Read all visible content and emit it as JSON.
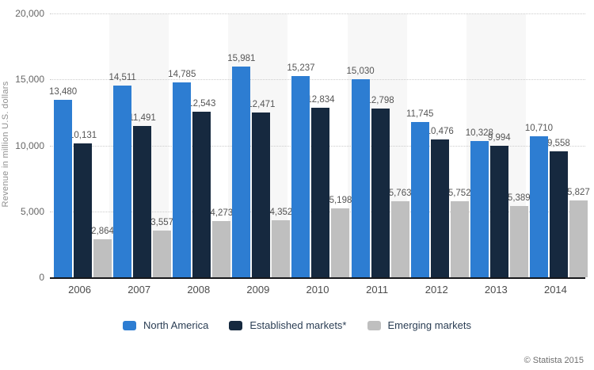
{
  "chart_data": {
    "type": "bar",
    "title": "",
    "xlabel": "",
    "ylabel": "Revenue in million U.S. dollars",
    "ylim": [
      0,
      20000
    ],
    "y_ticks": [
      {
        "value": 20000,
        "label": "20,000"
      },
      {
        "value": 15000,
        "label": "15,000"
      },
      {
        "value": 10000,
        "label": "10,000"
      },
      {
        "value": 5000,
        "label": "5,000"
      },
      {
        "value": 0,
        "label": "0"
      }
    ],
    "categories": [
      "2006",
      "2007",
      "2008",
      "2009",
      "2010",
      "2011",
      "2012",
      "2013",
      "2014"
    ],
    "series": [
      {
        "name": "North America",
        "color": "#2d7dd2",
        "values": [
          13480,
          14511,
          14785,
          15981,
          15237,
          15030,
          11745,
          10328,
          10710
        ]
      },
      {
        "name": "Established markets*",
        "color": "#16293f",
        "values": [
          10131,
          11491,
          12543,
          12471,
          12834,
          12798,
          10476,
          9994,
          9558
        ]
      },
      {
        "name": "Emerging markets",
        "color": "#bfbfbf",
        "values": [
          2864,
          3557,
          4273,
          4352,
          5198,
          5763,
          5752,
          5389,
          5827
        ]
      }
    ],
    "grid": "horizontal-dotted",
    "legend_position": "bottom",
    "plot_bands": "alternating-category-shading"
  },
  "colors": {
    "band": "#f7f7f7",
    "gridline": "#cccccc",
    "axis_line": "#16171b",
    "data_label": "#555555",
    "background": "#ffffff"
  },
  "footer": {
    "credit": "© Statista 2015"
  }
}
